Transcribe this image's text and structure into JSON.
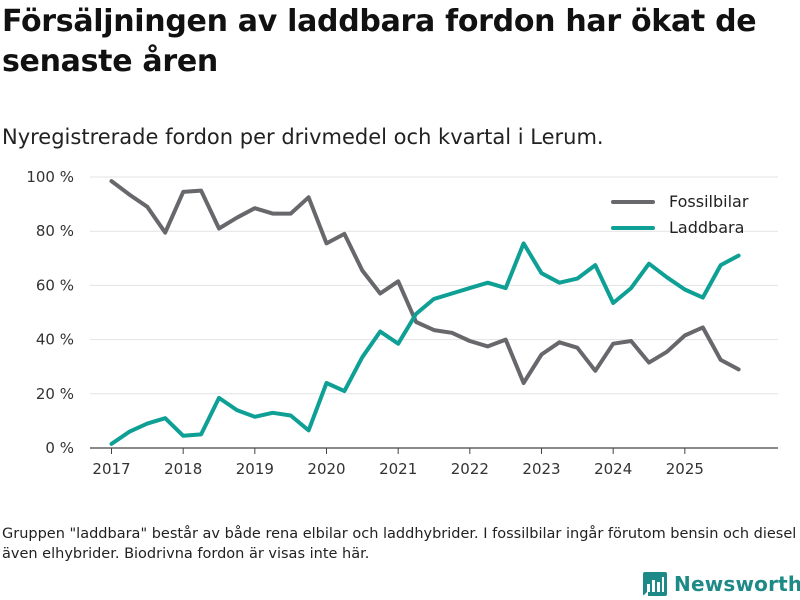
{
  "title": "Försäljningen av laddbara fordon har ökat de senaste åren",
  "subtitle": "Nyregistrerade fordon per drivmedel och kvartal i Lerum.",
  "footnote": "Gruppen \"laddbara\" består av både rena elbilar och laddhybrider. I fossilbilar ingår förutom bensin och diesel även elhybrider. Biodrivna fordon är visas inte här.",
  "brand": {
    "name": "Newsworthy",
    "color": "#1e8a87"
  },
  "chart_data": {
    "type": "line",
    "title": "Försäljningen av laddbara fordon har ökat de senaste åren",
    "subtitle": "Nyregistrerade fordon per drivmedel och kvartal i Lerum.",
    "xlabel": "",
    "ylabel": "",
    "x": [
      2017.0,
      2017.25,
      2017.5,
      2017.75,
      2018.0,
      2018.25,
      2018.5,
      2018.75,
      2019.0,
      2019.25,
      2019.5,
      2019.75,
      2020.0,
      2020.25,
      2020.5,
      2020.75,
      2021.0,
      2021.25,
      2021.5,
      2021.75,
      2022.0,
      2022.25,
      2022.5,
      2022.75,
      2023.0,
      2023.25,
      2023.5,
      2023.75,
      2024.0,
      2024.25,
      2024.5,
      2024.75,
      2025.0,
      2025.25,
      2025.5,
      2025.75
    ],
    "xticks": [
      2017,
      2018,
      2019,
      2020,
      2021,
      2022,
      2023,
      2024,
      2025
    ],
    "xtick_labels": [
      "2017",
      "2018",
      "2019",
      "2020",
      "2021",
      "2022",
      "2023",
      "2024",
      "2025"
    ],
    "ylim": [
      0,
      100
    ],
    "yticks": [
      0,
      20,
      40,
      60,
      80,
      100
    ],
    "ytick_labels": [
      "0 %",
      "20 %",
      "40 %",
      "60 %",
      "80 %",
      "100 %"
    ],
    "legend_position": "top-right",
    "grid": "horizontal",
    "series": [
      {
        "name": "Fossilbilar",
        "color": "#67676c",
        "values": [
          98.5,
          93.5,
          89,
          79.5,
          94.5,
          95,
          81,
          85,
          88.5,
          86.5,
          86.5,
          92.5,
          75.5,
          79,
          65.5,
          57,
          61.5,
          46.5,
          43.5,
          42.5,
          39.5,
          37.5,
          40,
          24,
          34.5,
          39,
          37,
          28.5,
          38.5,
          39.5,
          31.5,
          35.5,
          41.5,
          44.5,
          32.5,
          29
        ]
      },
      {
        "name": "Laddbara",
        "color": "#0e9f95",
        "values": [
          1.5,
          6,
          9,
          11,
          4.5,
          5,
          18.5,
          14,
          11.5,
          13,
          12,
          6.5,
          24,
          21,
          33.5,
          43,
          38.5,
          49.5,
          55,
          57,
          59,
          61,
          59,
          75.5,
          64.5,
          61,
          62.5,
          67.5,
          53.5,
          59,
          68,
          63,
          58.5,
          55.5,
          67.5,
          71
        ]
      }
    ]
  }
}
